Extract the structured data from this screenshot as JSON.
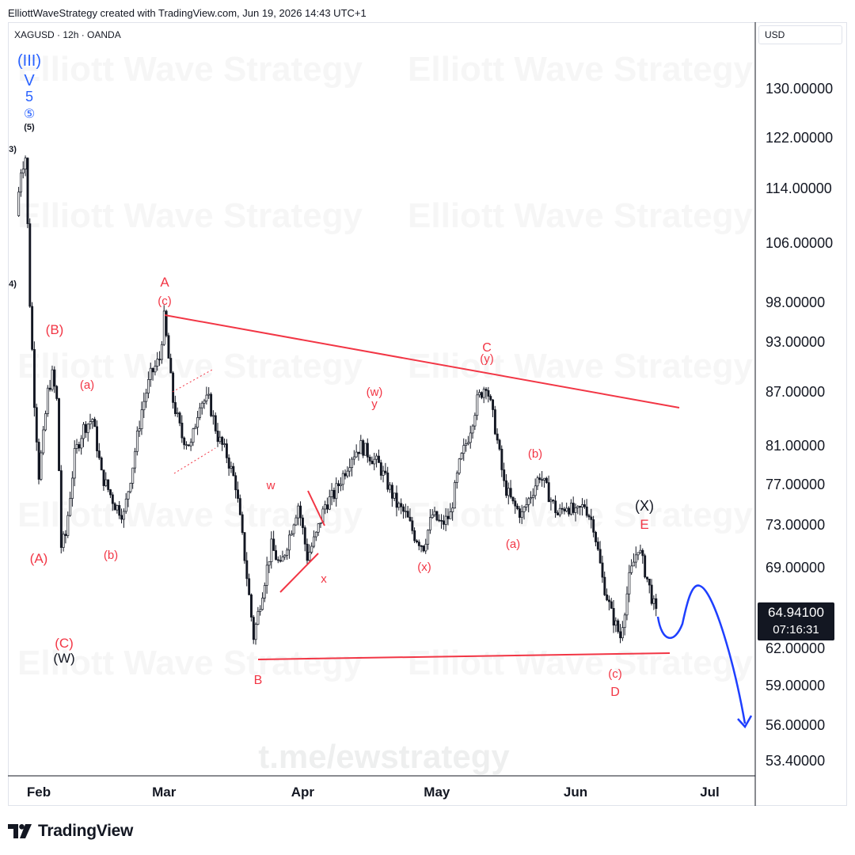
{
  "header": {
    "attribution": "ElliottWaveStrategy created with TradingView.com, Jun 19, 2026 14:43 UTC+1"
  },
  "symbol_line": "XAGUSD · 12h · OANDA",
  "currency": "USD",
  "price_tag": {
    "price": "64.94100",
    "countdown": "07:16:31"
  },
  "watermarks": {
    "brand": "Elliott Wave Strategy",
    "channel": "t.me/ewstrategy"
  },
  "footer": {
    "brand": "TradingView"
  },
  "colors": {
    "wave_red": "#f23645",
    "wave_blue": "#2962ff",
    "forecast_blue": "#1e3fff",
    "candle": "#131722"
  },
  "chart_data": {
    "type": "candlestick",
    "y_ticks": [
      "130.00000",
      "122.00000",
      "114.00000",
      "106.00000",
      "98.00000",
      "93.00000",
      "87.00000",
      "81.00000",
      "77.00000",
      "73.00000",
      "69.00000",
      "62.00000",
      "59.00000",
      "56.00000",
      "53.40000"
    ],
    "x_ticks": [
      "Feb",
      "Mar",
      "Apr",
      "May",
      "Jun",
      "Jul"
    ],
    "last_price": 64.941,
    "ohlc_close_path": [
      {
        "date": "2026-01-27",
        "close": 110
      },
      {
        "date": "2026-01-28",
        "close": 117
      },
      {
        "date": "2026-01-29",
        "close": 119
      },
      {
        "date": "2026-01-30",
        "close": 98
      },
      {
        "date": "2026-01-31",
        "close": 86
      },
      {
        "date": "2026-02-01",
        "close": 78
      },
      {
        "date": "2026-02-02",
        "close": 82
      },
      {
        "date": "2026-02-03",
        "close": 87
      },
      {
        "date": "2026-02-04",
        "close": 89
      },
      {
        "date": "2026-02-05",
        "close": 86
      },
      {
        "date": "2026-02-06",
        "close": 71
      },
      {
        "date": "2026-02-07",
        "close": 72
      },
      {
        "date": "2026-02-09",
        "close": 80
      },
      {
        "date": "2026-02-11",
        "close": 83
      },
      {
        "date": "2026-02-13",
        "close": 84
      },
      {
        "date": "2026-02-15",
        "close": 78
      },
      {
        "date": "2026-02-18",
        "close": 75
      },
      {
        "date": "2026-02-20",
        "close": 74
      },
      {
        "date": "2026-02-22",
        "close": 79
      },
      {
        "date": "2026-02-24",
        "close": 85
      },
      {
        "date": "2026-02-26",
        "close": 89
      },
      {
        "date": "2026-02-28",
        "close": 91
      },
      {
        "date": "2026-03-01",
        "close": 96
      },
      {
        "date": "2026-03-03",
        "close": 86
      },
      {
        "date": "2026-03-05",
        "close": 82
      },
      {
        "date": "2026-03-07",
        "close": 81
      },
      {
        "date": "2026-03-09",
        "close": 86
      },
      {
        "date": "2026-03-11",
        "close": 86
      },
      {
        "date": "2026-03-13",
        "close": 82
      },
      {
        "date": "2026-03-15",
        "close": 80
      },
      {
        "date": "2026-03-17",
        "close": 77
      },
      {
        "date": "2026-03-19",
        "close": 70
      },
      {
        "date": "2026-03-21",
        "close": 63
      },
      {
        "date": "2026-03-23",
        "close": 67
      },
      {
        "date": "2026-03-25",
        "close": 71
      },
      {
        "date": "2026-03-27",
        "close": 69
      },
      {
        "date": "2026-03-29",
        "close": 72
      },
      {
        "date": "2026-03-31",
        "close": 75
      },
      {
        "date": "2026-04-02",
        "close": 70
      },
      {
        "date": "2026-04-04",
        "close": 72
      },
      {
        "date": "2026-04-06",
        "close": 75
      },
      {
        "date": "2026-04-08",
        "close": 76
      },
      {
        "date": "2026-04-10",
        "close": 78
      },
      {
        "date": "2026-04-12",
        "close": 80
      },
      {
        "date": "2026-04-14",
        "close": 81
      },
      {
        "date": "2026-04-16",
        "close": 80
      },
      {
        "date": "2026-04-18",
        "close": 79
      },
      {
        "date": "2026-04-20",
        "close": 77
      },
      {
        "date": "2026-04-22",
        "close": 75
      },
      {
        "date": "2026-04-24",
        "close": 74
      },
      {
        "date": "2026-04-26",
        "close": 72
      },
      {
        "date": "2026-04-28",
        "close": 71
      },
      {
        "date": "2026-04-30",
        "close": 74
      },
      {
        "date": "2026-05-02",
        "close": 73
      },
      {
        "date": "2026-05-04",
        "close": 74
      },
      {
        "date": "2026-05-06",
        "close": 79
      },
      {
        "date": "2026-05-08",
        "close": 82
      },
      {
        "date": "2026-05-10",
        "close": 86
      },
      {
        "date": "2026-05-12",
        "close": 88
      },
      {
        "date": "2026-05-14",
        "close": 83
      },
      {
        "date": "2026-05-16",
        "close": 77
      },
      {
        "date": "2026-05-18",
        "close": 75
      },
      {
        "date": "2026-05-20",
        "close": 74
      },
      {
        "date": "2026-05-22",
        "close": 76
      },
      {
        "date": "2026-05-24",
        "close": 78
      },
      {
        "date": "2026-05-26",
        "close": 76
      },
      {
        "date": "2026-05-28",
        "close": 74
      },
      {
        "date": "2026-05-30",
        "close": 75
      },
      {
        "date": "2026-06-01",
        "close": 74
      },
      {
        "date": "2026-06-03",
        "close": 75
      },
      {
        "date": "2026-06-05",
        "close": 73
      },
      {
        "date": "2026-06-07",
        "close": 68
      },
      {
        "date": "2026-06-09",
        "close": 65
      },
      {
        "date": "2026-06-11",
        "close": 63
      },
      {
        "date": "2026-06-13",
        "close": 68
      },
      {
        "date": "2026-06-15",
        "close": 71
      },
      {
        "date": "2026-06-17",
        "close": 68
      },
      {
        "date": "2026-06-19",
        "close": 64.94
      }
    ],
    "wave_labels": [
      {
        "text": "(III)",
        "color": "blue"
      },
      {
        "text": "V",
        "color": "blue"
      },
      {
        "text": "5",
        "color": "blue"
      },
      {
        "text": "⑤",
        "color": "blue"
      },
      {
        "text": "(5)",
        "color": "black"
      },
      {
        "text": "3)",
        "color": "black"
      },
      {
        "text": "4)",
        "color": "black"
      },
      {
        "text": "(B)",
        "color": "red"
      },
      {
        "text": "(A)",
        "color": "red"
      },
      {
        "text": "(C)",
        "color": "red"
      },
      {
        "text": "(W)",
        "color": "black"
      },
      {
        "text": "(a)",
        "color": "red"
      },
      {
        "text": "(b)",
        "color": "red"
      },
      {
        "text": "A",
        "color": "red"
      },
      {
        "text": "(c)",
        "color": "red"
      },
      {
        "text": "w",
        "color": "red"
      },
      {
        "text": "x",
        "color": "red"
      },
      {
        "text": "B",
        "color": "red"
      },
      {
        "text": "(w)",
        "color": "red"
      },
      {
        "text": "y",
        "color": "red"
      },
      {
        "text": "(x)",
        "color": "red"
      },
      {
        "text": "C",
        "color": "red"
      },
      {
        "text": "(y)",
        "color": "red"
      },
      {
        "text": "(b)",
        "color": "red"
      },
      {
        "text": "(a)",
        "color": "red"
      },
      {
        "text": "(c)",
        "color": "red"
      },
      {
        "text": "D",
        "color": "red"
      },
      {
        "text": "(X)",
        "color": "black"
      },
      {
        "text": "E",
        "color": "red"
      }
    ]
  }
}
